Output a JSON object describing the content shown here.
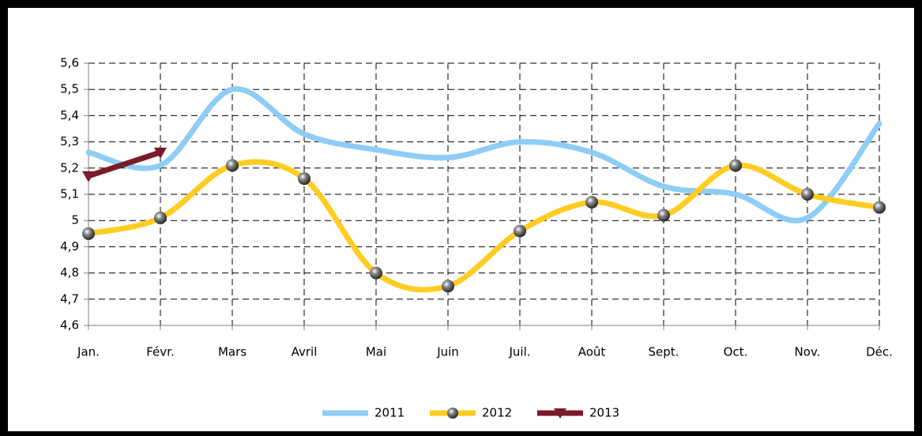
{
  "chart_data": {
    "type": "line",
    "categories": [
      "Jan.",
      "Févr.",
      "Mars",
      "Avril",
      "Mai",
      "Juin",
      "Juil.",
      "Août",
      "Sept.",
      "Oct.",
      "Nov.",
      "Déc."
    ],
    "series": [
      {
        "name": "2011",
        "color": "#8ecdf5",
        "marker": "none",
        "values": [
          5.26,
          5.21,
          5.5,
          5.33,
          5.27,
          5.24,
          5.3,
          5.26,
          5.13,
          5.1,
          5.01,
          5.37
        ]
      },
      {
        "name": "2012",
        "color": "#ffcc22",
        "marker": "sphere",
        "values": [
          4.95,
          5.01,
          5.21,
          5.16,
          4.8,
          4.75,
          4.96,
          5.07,
          5.02,
          5.21,
          5.1,
          5.05
        ]
      },
      {
        "name": "2013",
        "color": "#7b1a2a",
        "marker": "triangle-down",
        "values": [
          5.17,
          5.26,
          null,
          null,
          null,
          null,
          null,
          null,
          null,
          null,
          null,
          null
        ]
      }
    ],
    "ylim": [
      4.6,
      5.6
    ],
    "yticks": [
      {
        "value": 4.6,
        "label": "4,6"
      },
      {
        "value": 4.7,
        "label": "4,7"
      },
      {
        "value": 4.8,
        "label": "4,8"
      },
      {
        "value": 4.9,
        "label": "4,9"
      },
      5,
      {
        "value": 5.1,
        "label": "5,1"
      },
      {
        "value": 5.2,
        "label": "5,2"
      },
      {
        "value": 5.3,
        "label": "5,3"
      },
      {
        "value": 5.4,
        "label": "5,4"
      },
      {
        "value": 5.5,
        "label": "5,5"
      },
      {
        "value": 5.6,
        "label": "5,6"
      }
    ],
    "grid": true,
    "smooth": true,
    "legend": "bottom"
  }
}
